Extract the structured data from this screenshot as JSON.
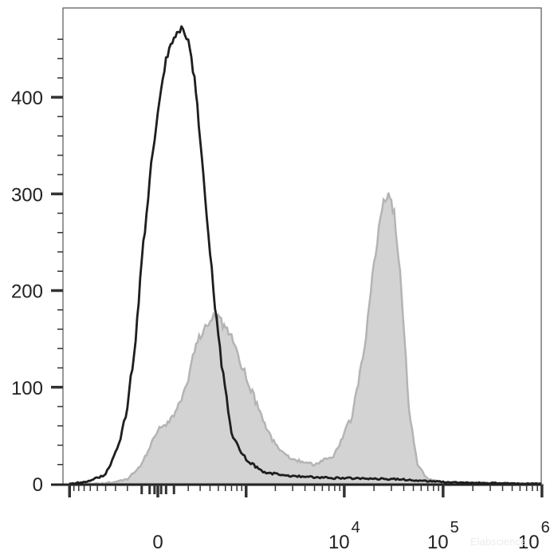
{
  "chart_data": {
    "type": "area",
    "title": "",
    "xlabel": "",
    "ylabel": "",
    "x_scale": "biexponential",
    "ylim": [
      0,
      480
    ],
    "grid": false,
    "y_ticks": [
      {
        "value": 0,
        "label": "0"
      },
      {
        "value": 100,
        "label": "100"
      },
      {
        "value": 200,
        "label": "200"
      },
      {
        "value": 300,
        "label": "300"
      },
      {
        "value": 400,
        "label": "400"
      }
    ],
    "x_ticks": [
      {
        "value": 0,
        "base": "0",
        "exp": ""
      },
      {
        "value": 10000,
        "base": "10",
        "exp": "4"
      },
      {
        "value": 100000,
        "base": "10",
        "exp": "5"
      },
      {
        "value": 1000000,
        "base": "10",
        "exp": "6"
      }
    ],
    "series": [
      {
        "style": "filled",
        "color": "#b4b4b4",
        "fill": "#d3d3d3",
        "points": [
          [
            -1000,
            0
          ],
          [
            -500,
            0
          ],
          [
            -300,
            2
          ],
          [
            -200,
            5
          ],
          [
            -100,
            20
          ],
          [
            10,
            60
          ],
          [
            50,
            62
          ],
          [
            100,
            70
          ],
          [
            150,
            90
          ],
          [
            200,
            110
          ],
          [
            250,
            140
          ],
          [
            350,
            165
          ],
          [
            460,
            175
          ],
          [
            560,
            165
          ],
          [
            700,
            150
          ],
          [
            1000,
            110
          ],
          [
            1500,
            65
          ],
          [
            2000,
            40
          ],
          [
            3000,
            25
          ],
          [
            5000,
            20
          ],
          [
            8000,
            30
          ],
          [
            12000,
            70
          ],
          [
            16000,
            140
          ],
          [
            20000,
            230
          ],
          [
            25000,
            295
          ],
          [
            28000,
            300
          ],
          [
            32000,
            280
          ],
          [
            38000,
            200
          ],
          [
            45000,
            80
          ],
          [
            55000,
            20
          ],
          [
            70000,
            5
          ],
          [
            100000,
            1
          ],
          [
            200000,
            0
          ],
          [
            1000000,
            0
          ]
        ]
      },
      {
        "style": "line",
        "color": "#1e1e1e",
        "points": [
          [
            -1000,
            0
          ],
          [
            -600,
            3
          ],
          [
            -400,
            10
          ],
          [
            -270,
            40
          ],
          [
            -200,
            80
          ],
          [
            -140,
            150
          ],
          [
            -100,
            230
          ],
          [
            -40,
            330
          ],
          [
            10,
            400
          ],
          [
            50,
            440
          ],
          [
            100,
            460
          ],
          [
            150,
            475
          ],
          [
            200,
            460
          ],
          [
            250,
            420
          ],
          [
            300,
            360
          ],
          [
            400,
            240
          ],
          [
            500,
            150
          ],
          [
            700,
            50
          ],
          [
            1000,
            25
          ],
          [
            1500,
            12
          ],
          [
            3000,
            8
          ],
          [
            8000,
            6
          ],
          [
            32000,
            5
          ],
          [
            100000,
            2
          ],
          [
            200000,
            1
          ],
          [
            1000000,
            0
          ]
        ]
      }
    ]
  },
  "watermark": "Elabscience"
}
